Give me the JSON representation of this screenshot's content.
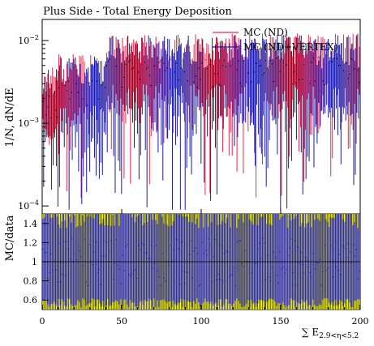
{
  "chart_data": [
    {
      "type": "line",
      "title": "Plus Side - Total Energy Deposition",
      "ylabel_main": "1/N, dN/dE",
      "ylabel_ratio": "MC/data",
      "xlabel": {
        "prefix": "∑ E",
        "subscript": "2.9<η<5.2"
      },
      "xlim": [
        0,
        200
      ],
      "ylim_main": [
        8e-05,
        0.018
      ],
      "y_scale": "log",
      "ylim_ratio": [
        0.5,
        1.5
      ],
      "x_ticks": [
        "0",
        "50",
        "100",
        "150",
        "200"
      ],
      "y_ticks_main": [
        {
          "label_base": "10",
          "label_exp": "−2",
          "value": 0.01
        },
        {
          "label_base": "10",
          "label_exp": "−3",
          "value": 0.001
        },
        {
          "label_base": "10",
          "label_exp": "−4",
          "value": 0.0001
        }
      ],
      "y_ticks_ratio": [
        {
          "label": "1.4",
          "value": 1.4
        },
        {
          "label": "1.2",
          "value": 1.2
        },
        {
          "label": "1",
          "value": 1.0
        },
        {
          "label": "0.8",
          "value": 0.8
        },
        {
          "label": "0.6",
          "value": 0.6
        }
      ],
      "legend_position": "top-right",
      "series": [
        {
          "name": "MC (ND)",
          "color": "#e8294a"
        },
        {
          "name": "MC (ND+VERTEX)",
          "color": "#1a1aa8"
        }
      ],
      "bands": {
        "nd_band_color": "#ffff00",
        "vertex_band_color": "#6666ff",
        "data_color": "#000000"
      },
      "note": "Main panel: ~200 bins spanning roughly 2e-4 to 1e-2 with most values between 1e-3 and 8e-3; ratio panel: values scattered around 1 with large uncertainty bands."
    }
  ]
}
